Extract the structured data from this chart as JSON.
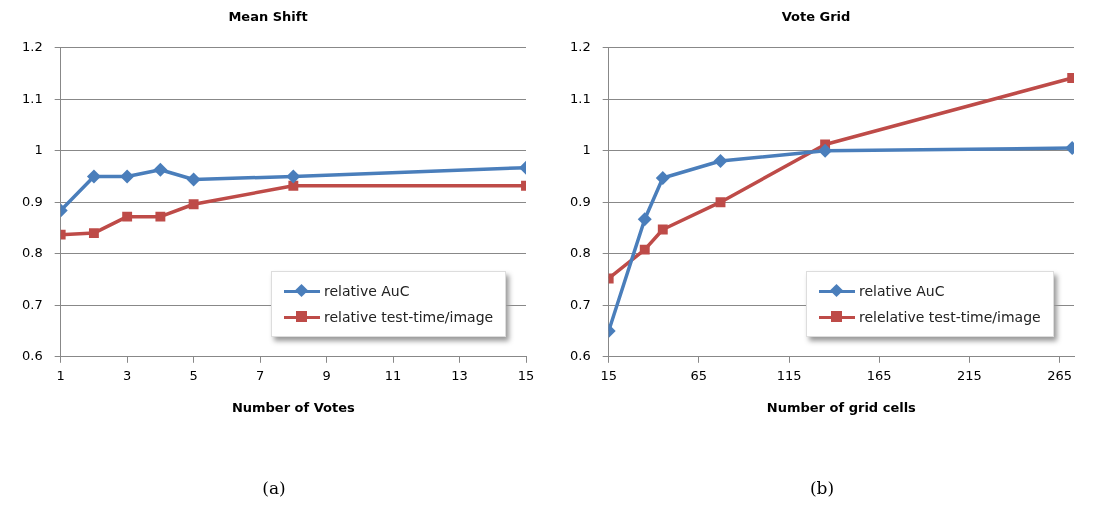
{
  "chart_data": [
    {
      "type": "line",
      "title": "Mean Shift",
      "xlabel": "Number of Votes",
      "annotations": [
        "(a)"
      ],
      "xlim": [
        1,
        15
      ],
      "xticks": [
        1,
        3,
        5,
        7,
        9,
        11,
        13,
        15
      ],
      "ylim": [
        0.6,
        1.2
      ],
      "yticks": [
        0.6,
        0.7,
        0.8,
        0.9,
        1,
        1.1,
        1.2
      ],
      "grid": "y",
      "legend": "bottom right",
      "series": [
        {
          "name": "relative AuC",
          "color": "#4a7ebb",
          "marker": "diamond",
          "x": [
            1,
            2,
            3,
            4,
            5,
            8,
            15
          ],
          "values": [
            0.884,
            0.95,
            0.95,
            0.963,
            0.944,
            0.95,
            0.967
          ]
        },
        {
          "name": "relative test-time/image",
          "color": "#be4b48",
          "marker": "square",
          "x": [
            1,
            2,
            3,
            4,
            5,
            8,
            15
          ],
          "values": [
            0.837,
            0.84,
            0.872,
            0.872,
            0.896,
            0.932,
            0.932
          ]
        }
      ]
    },
    {
      "type": "line",
      "title": "Vote Grid",
      "xlabel": "Number of grid cells",
      "annotations": [
        "(b)"
      ],
      "xlim": [
        15,
        273
      ],
      "xticks": [
        15,
        65,
        115,
        165,
        215,
        265
      ],
      "ylim": [
        0.6,
        1.2
      ],
      "yticks": [
        0.6,
        0.7,
        0.8,
        0.9,
        1,
        1.1,
        1.2
      ],
      "grid": "y",
      "legend": "bottom right",
      "series": [
        {
          "name": "relative AuC",
          "color": "#4a7ebb",
          "marker": "diamond",
          "x": [
            15,
            35,
            45,
            77,
            135,
            272
          ],
          "values": [
            0.65,
            0.867,
            0.947,
            0.98,
            1.0,
            1.005
          ]
        },
        {
          "name": "relelative test-time/image",
          "color": "#be4b48",
          "marker": "square",
          "x": [
            15,
            35,
            45,
            77,
            135,
            272
          ],
          "values": [
            0.752,
            0.808,
            0.847,
            0.9,
            1.012,
            1.141
          ]
        }
      ]
    }
  ]
}
